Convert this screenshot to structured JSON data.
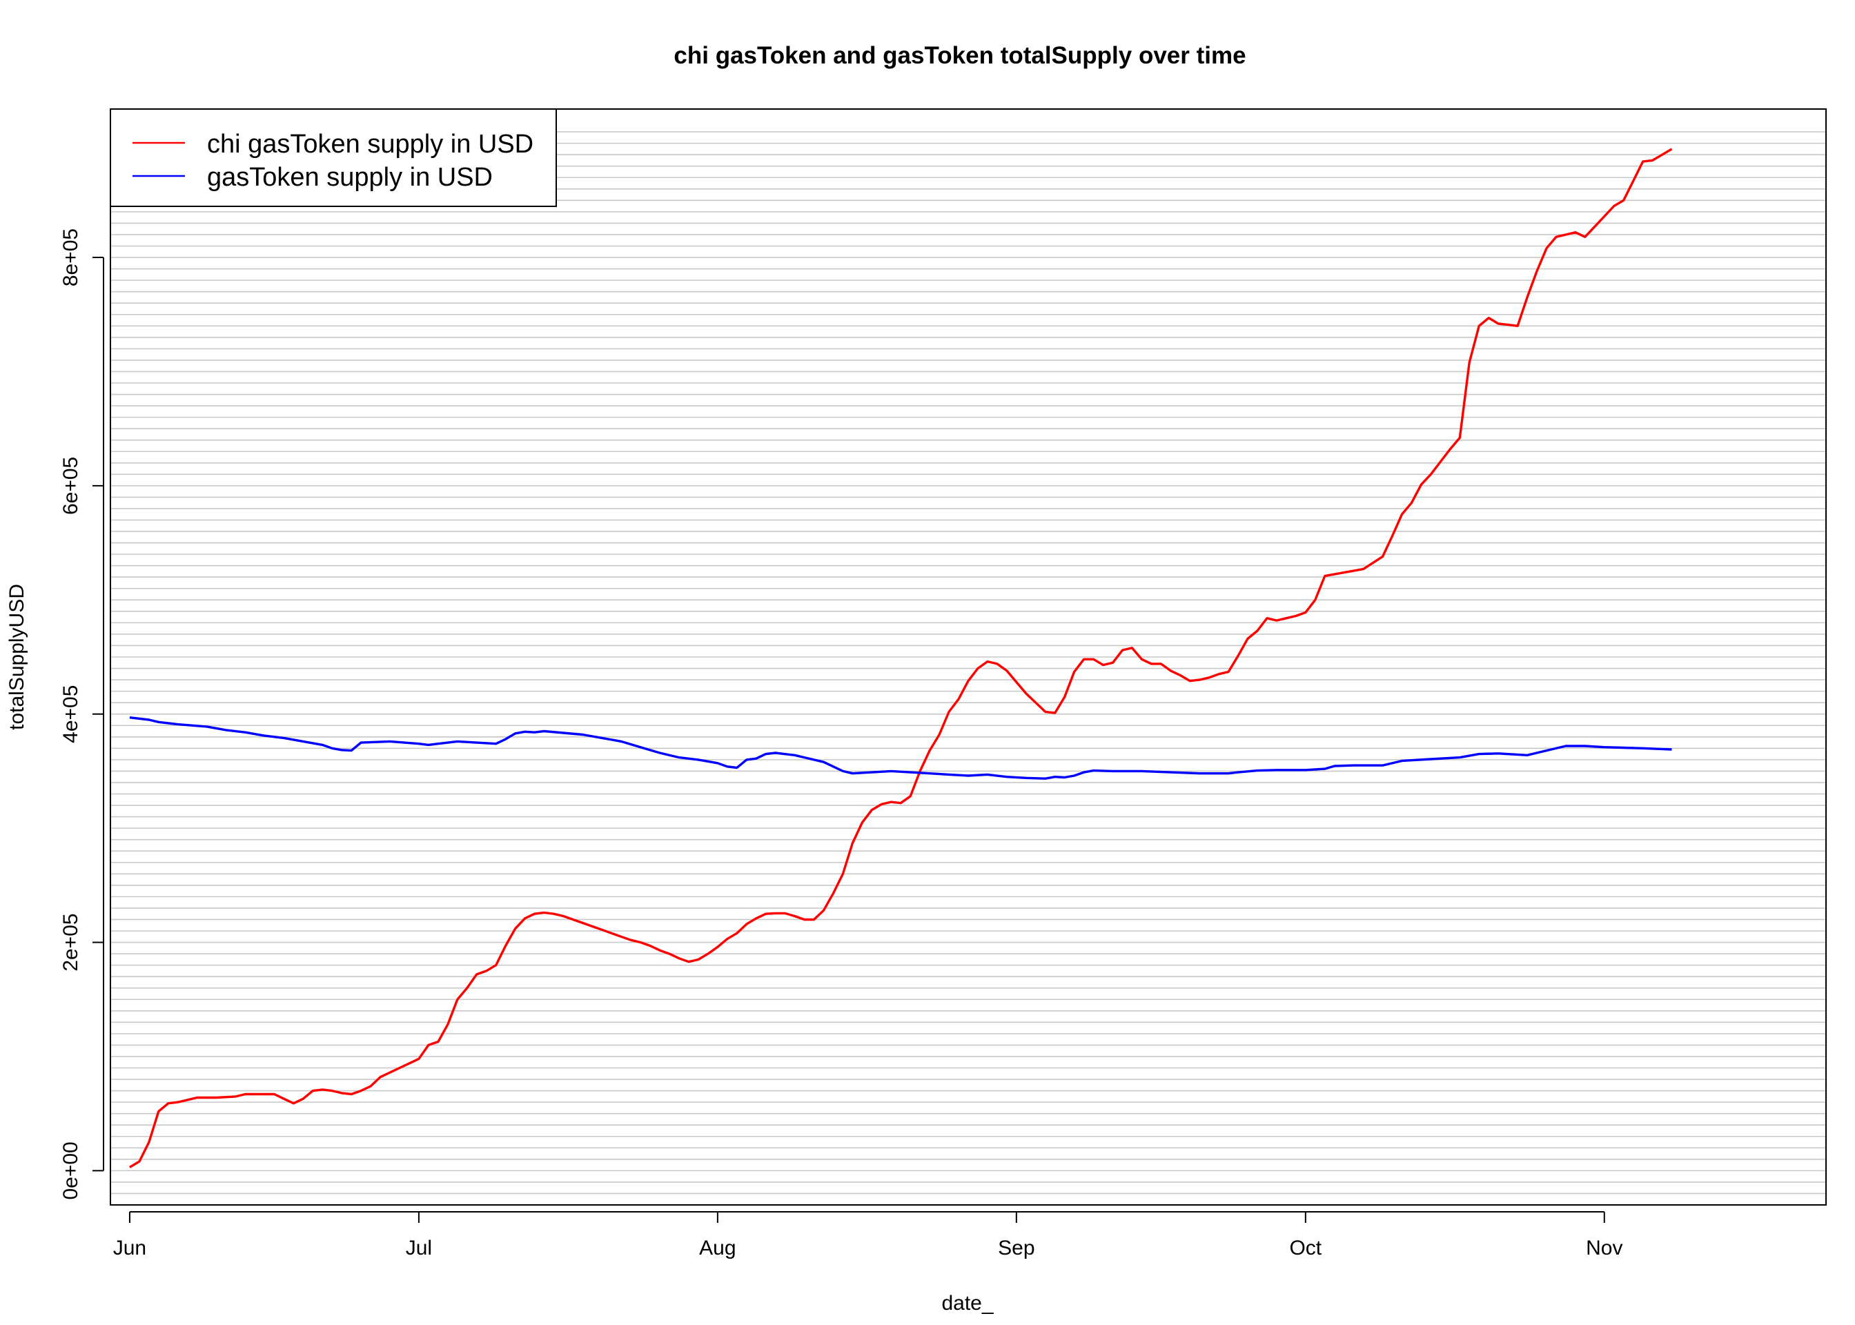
{
  "chart_data": {
    "type": "line",
    "title": "chi gasToken and gasToken totalSupply over time",
    "xlabel": "date_",
    "ylabel": "totalSupplyUSD",
    "x_ticks": [
      "Jun",
      "Jul",
      "Aug",
      "Sep",
      "Oct",
      "Nov"
    ],
    "y_ticks": [
      "0e+00",
      "2e+05",
      "4e+05",
      "6e+05",
      "8e+05"
    ],
    "ylim": [
      -30000,
      930000
    ],
    "x_range": [
      "2020-05-30",
      "2020-11-24"
    ],
    "grid": "horizontal",
    "legend": {
      "placement": "top-left"
    },
    "series": [
      {
        "name": "chi gasToken supply in USD",
        "color": "#ff0000",
        "points": [
          [
            "2020-06-01",
            3000
          ],
          [
            "2020-06-02",
            8000
          ],
          [
            "2020-06-03",
            25000
          ],
          [
            "2020-06-04",
            52000
          ],
          [
            "2020-06-05",
            59000
          ],
          [
            "2020-06-06",
            60000
          ],
          [
            "2020-06-07",
            62000
          ],
          [
            "2020-06-08",
            64000
          ],
          [
            "2020-06-10",
            64000
          ],
          [
            "2020-06-12",
            65000
          ],
          [
            "2020-06-13",
            67000
          ],
          [
            "2020-06-15",
            67000
          ],
          [
            "2020-06-16",
            67000
          ],
          [
            "2020-06-17",
            63000
          ],
          [
            "2020-06-18",
            59000
          ],
          [
            "2020-06-19",
            63000
          ],
          [
            "2020-06-20",
            70000
          ],
          [
            "2020-06-21",
            71000
          ],
          [
            "2020-06-22",
            70000
          ],
          [
            "2020-06-23",
            68000
          ],
          [
            "2020-06-24",
            67000
          ],
          [
            "2020-06-25",
            70000
          ],
          [
            "2020-06-26",
            74000
          ],
          [
            "2020-06-27",
            82000
          ],
          [
            "2020-06-28",
            86000
          ],
          [
            "2020-06-29",
            90000
          ],
          [
            "2020-06-30",
            94000
          ],
          [
            "2020-07-01",
            98000
          ],
          [
            "2020-07-02",
            110000
          ],
          [
            "2020-07-03",
            113000
          ],
          [
            "2020-07-04",
            128000
          ],
          [
            "2020-07-05",
            150000
          ],
          [
            "2020-07-06",
            160000
          ],
          [
            "2020-07-07",
            172000
          ],
          [
            "2020-07-08",
            175000
          ],
          [
            "2020-07-09",
            180000
          ],
          [
            "2020-07-10",
            197000
          ],
          [
            "2020-07-11",
            212000
          ],
          [
            "2020-07-12",
            221000
          ],
          [
            "2020-07-13",
            225000
          ],
          [
            "2020-07-14",
            226000
          ],
          [
            "2020-07-15",
            225000
          ],
          [
            "2020-07-16",
            223000
          ],
          [
            "2020-07-17",
            220000
          ],
          [
            "2020-07-18",
            217000
          ],
          [
            "2020-07-19",
            214000
          ],
          [
            "2020-07-20",
            211000
          ],
          [
            "2020-07-21",
            208000
          ],
          [
            "2020-07-22",
            205000
          ],
          [
            "2020-07-23",
            202000
          ],
          [
            "2020-07-24",
            200000
          ],
          [
            "2020-07-25",
            197000
          ],
          [
            "2020-07-26",
            193000
          ],
          [
            "2020-07-27",
            190000
          ],
          [
            "2020-07-28",
            186000
          ],
          [
            "2020-07-29",
            183000
          ],
          [
            "2020-07-30",
            185000
          ],
          [
            "2020-07-31",
            190000
          ],
          [
            "2020-08-01",
            196000
          ],
          [
            "2020-08-02",
            203000
          ],
          [
            "2020-08-03",
            208000
          ],
          [
            "2020-08-04",
            216000
          ],
          [
            "2020-08-05",
            221000
          ],
          [
            "2020-08-06",
            225000
          ],
          [
            "2020-08-07",
            225500
          ],
          [
            "2020-08-08",
            225500
          ],
          [
            "2020-08-09",
            223000
          ],
          [
            "2020-08-10",
            220000
          ],
          [
            "2020-08-11",
            220000
          ],
          [
            "2020-08-12",
            228000
          ],
          [
            "2020-08-13",
            243000
          ],
          [
            "2020-08-14",
            260000
          ],
          [
            "2020-08-15",
            287000
          ],
          [
            "2020-08-16",
            305000
          ],
          [
            "2020-08-17",
            316000
          ],
          [
            "2020-08-18",
            321000
          ],
          [
            "2020-08-19",
            323000
          ],
          [
            "2020-08-20",
            322000
          ],
          [
            "2020-08-21",
            328000
          ],
          [
            "2020-08-22",
            350000
          ],
          [
            "2020-08-23",
            368000
          ],
          [
            "2020-08-24",
            382000
          ],
          [
            "2020-08-25",
            402000
          ],
          [
            "2020-08-26",
            413000
          ],
          [
            "2020-08-27",
            429000
          ],
          [
            "2020-08-28",
            440000
          ],
          [
            "2020-08-29",
            446000
          ],
          [
            "2020-08-30",
            444000
          ],
          [
            "2020-08-31",
            438000
          ],
          [
            "2020-09-01",
            428000
          ],
          [
            "2020-09-02",
            418000
          ],
          [
            "2020-09-03",
            410000
          ],
          [
            "2020-09-04",
            402000
          ],
          [
            "2020-09-05",
            401000
          ],
          [
            "2020-09-06",
            415000
          ],
          [
            "2020-09-07",
            437000
          ],
          [
            "2020-09-08",
            448000
          ],
          [
            "2020-09-09",
            448000
          ],
          [
            "2020-09-10",
            443000
          ],
          [
            "2020-09-11",
            445000
          ],
          [
            "2020-09-12",
            456000
          ],
          [
            "2020-09-13",
            458000
          ],
          [
            "2020-09-14",
            448000
          ],
          [
            "2020-09-15",
            444000
          ],
          [
            "2020-09-16",
            444000
          ],
          [
            "2020-09-17",
            438000
          ],
          [
            "2020-09-18",
            434000
          ],
          [
            "2020-09-19",
            429000
          ],
          [
            "2020-09-20",
            430000
          ],
          [
            "2020-09-21",
            432000
          ],
          [
            "2020-09-22",
            435000
          ],
          [
            "2020-09-23",
            437000
          ],
          [
            "2020-09-24",
            451000
          ],
          [
            "2020-09-25",
            466000
          ],
          [
            "2020-09-26",
            473000
          ],
          [
            "2020-09-27",
            484000
          ],
          [
            "2020-09-28",
            482000
          ],
          [
            "2020-09-29",
            484000
          ],
          [
            "2020-09-30",
            486000
          ],
          [
            "2020-10-01",
            489000
          ],
          [
            "2020-10-02",
            500000
          ],
          [
            "2020-10-03",
            521000
          ],
          [
            "2020-10-05",
            524000
          ],
          [
            "2020-10-07",
            527000
          ],
          [
            "2020-10-09",
            538000
          ],
          [
            "2020-10-10",
            556000
          ],
          [
            "2020-10-11",
            575000
          ],
          [
            "2020-10-12",
            585000
          ],
          [
            "2020-10-13",
            601000
          ],
          [
            "2020-10-14",
            610000
          ],
          [
            "2020-10-15",
            621000
          ],
          [
            "2020-10-16",
            632000
          ],
          [
            "2020-10-17",
            642000
          ],
          [
            "2020-10-18",
            708000
          ],
          [
            "2020-10-19",
            740000
          ],
          [
            "2020-10-20",
            747000
          ],
          [
            "2020-10-21",
            742000
          ],
          [
            "2020-10-22",
            741000
          ],
          [
            "2020-10-23",
            740000
          ],
          [
            "2020-10-24",
            765000
          ],
          [
            "2020-10-25",
            788000
          ],
          [
            "2020-10-26",
            808000
          ],
          [
            "2020-10-27",
            818000
          ],
          [
            "2020-10-28",
            820000
          ],
          [
            "2020-10-29",
            822000
          ],
          [
            "2020-10-30",
            818000
          ],
          [
            "2020-10-31",
            827000
          ],
          [
            "2020-11-01",
            836000
          ],
          [
            "2020-11-02",
            845000
          ],
          [
            "2020-11-03",
            850000
          ],
          [
            "2020-11-04",
            867000
          ],
          [
            "2020-11-05",
            884000
          ],
          [
            "2020-11-06",
            885000
          ],
          [
            "2020-11-07",
            890000
          ],
          [
            "2020-11-08",
            895000
          ]
        ]
      },
      {
        "name": "gasToken supply in USD",
        "color": "#0000ff",
        "points": [
          [
            "2020-06-01",
            397000
          ],
          [
            "2020-06-03",
            395000
          ],
          [
            "2020-06-04",
            393000
          ],
          [
            "2020-06-06",
            391000
          ],
          [
            "2020-06-09",
            389000
          ],
          [
            "2020-06-11",
            386000
          ],
          [
            "2020-06-13",
            384000
          ],
          [
            "2020-06-15",
            381000
          ],
          [
            "2020-06-17",
            379000
          ],
          [
            "2020-06-19",
            376000
          ],
          [
            "2020-06-21",
            373000
          ],
          [
            "2020-06-22",
            370000
          ],
          [
            "2020-06-23",
            368500
          ],
          [
            "2020-06-24",
            368000
          ],
          [
            "2020-06-25",
            375000
          ],
          [
            "2020-06-28",
            376000
          ],
          [
            "2020-07-01",
            374000
          ],
          [
            "2020-07-02",
            373000
          ],
          [
            "2020-07-03",
            374000
          ],
          [
            "2020-07-05",
            376000
          ],
          [
            "2020-07-07",
            375000
          ],
          [
            "2020-07-09",
            374000
          ],
          [
            "2020-07-10",
            378000
          ],
          [
            "2020-07-11",
            383000
          ],
          [
            "2020-07-12",
            384500
          ],
          [
            "2020-07-13",
            384000
          ],
          [
            "2020-07-14",
            385000
          ],
          [
            "2020-07-16",
            383500
          ],
          [
            "2020-07-18",
            382000
          ],
          [
            "2020-07-20",
            379000
          ],
          [
            "2020-07-22",
            376000
          ],
          [
            "2020-07-24",
            371000
          ],
          [
            "2020-07-26",
            366000
          ],
          [
            "2020-07-28",
            362000
          ],
          [
            "2020-07-30",
            360000
          ],
          [
            "2020-08-01",
            357000
          ],
          [
            "2020-08-02",
            354000
          ],
          [
            "2020-08-03",
            353000
          ],
          [
            "2020-08-04",
            360000
          ],
          [
            "2020-08-05",
            361000
          ],
          [
            "2020-08-06",
            365000
          ],
          [
            "2020-08-07",
            366000
          ],
          [
            "2020-08-09",
            364000
          ],
          [
            "2020-08-10",
            362000
          ],
          [
            "2020-08-12",
            358000
          ],
          [
            "2020-08-13",
            354000
          ],
          [
            "2020-08-14",
            350000
          ],
          [
            "2020-08-15",
            348000
          ],
          [
            "2020-08-17",
            349000
          ],
          [
            "2020-08-19",
            350000
          ],
          [
            "2020-08-21",
            349000
          ],
          [
            "2020-08-23",
            348000
          ],
          [
            "2020-08-25",
            347000
          ],
          [
            "2020-08-27",
            346000
          ],
          [
            "2020-08-29",
            347000
          ],
          [
            "2020-08-31",
            345000
          ],
          [
            "2020-09-02",
            344000
          ],
          [
            "2020-09-04",
            343500
          ],
          [
            "2020-09-05",
            345000
          ],
          [
            "2020-09-06",
            344500
          ],
          [
            "2020-09-07",
            346000
          ],
          [
            "2020-09-08",
            349000
          ],
          [
            "2020-09-09",
            350500
          ],
          [
            "2020-09-11",
            350000
          ],
          [
            "2020-09-14",
            350000
          ],
          [
            "2020-09-17",
            349000
          ],
          [
            "2020-09-20",
            348000
          ],
          [
            "2020-09-23",
            348000
          ],
          [
            "2020-09-24",
            349000
          ],
          [
            "2020-09-26",
            350500
          ],
          [
            "2020-09-28",
            351000
          ],
          [
            "2020-10-01",
            351000
          ],
          [
            "2020-10-03",
            352000
          ],
          [
            "2020-10-04",
            354500
          ],
          [
            "2020-10-06",
            355000
          ],
          [
            "2020-10-09",
            355000
          ],
          [
            "2020-10-11",
            359000
          ],
          [
            "2020-10-14",
            360500
          ],
          [
            "2020-10-17",
            362000
          ],
          [
            "2020-10-19",
            365000
          ],
          [
            "2020-10-21",
            365500
          ],
          [
            "2020-10-24",
            364000
          ],
          [
            "2020-10-26",
            368000
          ],
          [
            "2020-10-28",
            372000
          ],
          [
            "2020-10-30",
            372000
          ],
          [
            "2020-11-01",
            371000
          ],
          [
            "2020-11-03",
            370500
          ],
          [
            "2020-11-05",
            370000
          ],
          [
            "2020-11-08",
            369000
          ]
        ]
      }
    ]
  }
}
